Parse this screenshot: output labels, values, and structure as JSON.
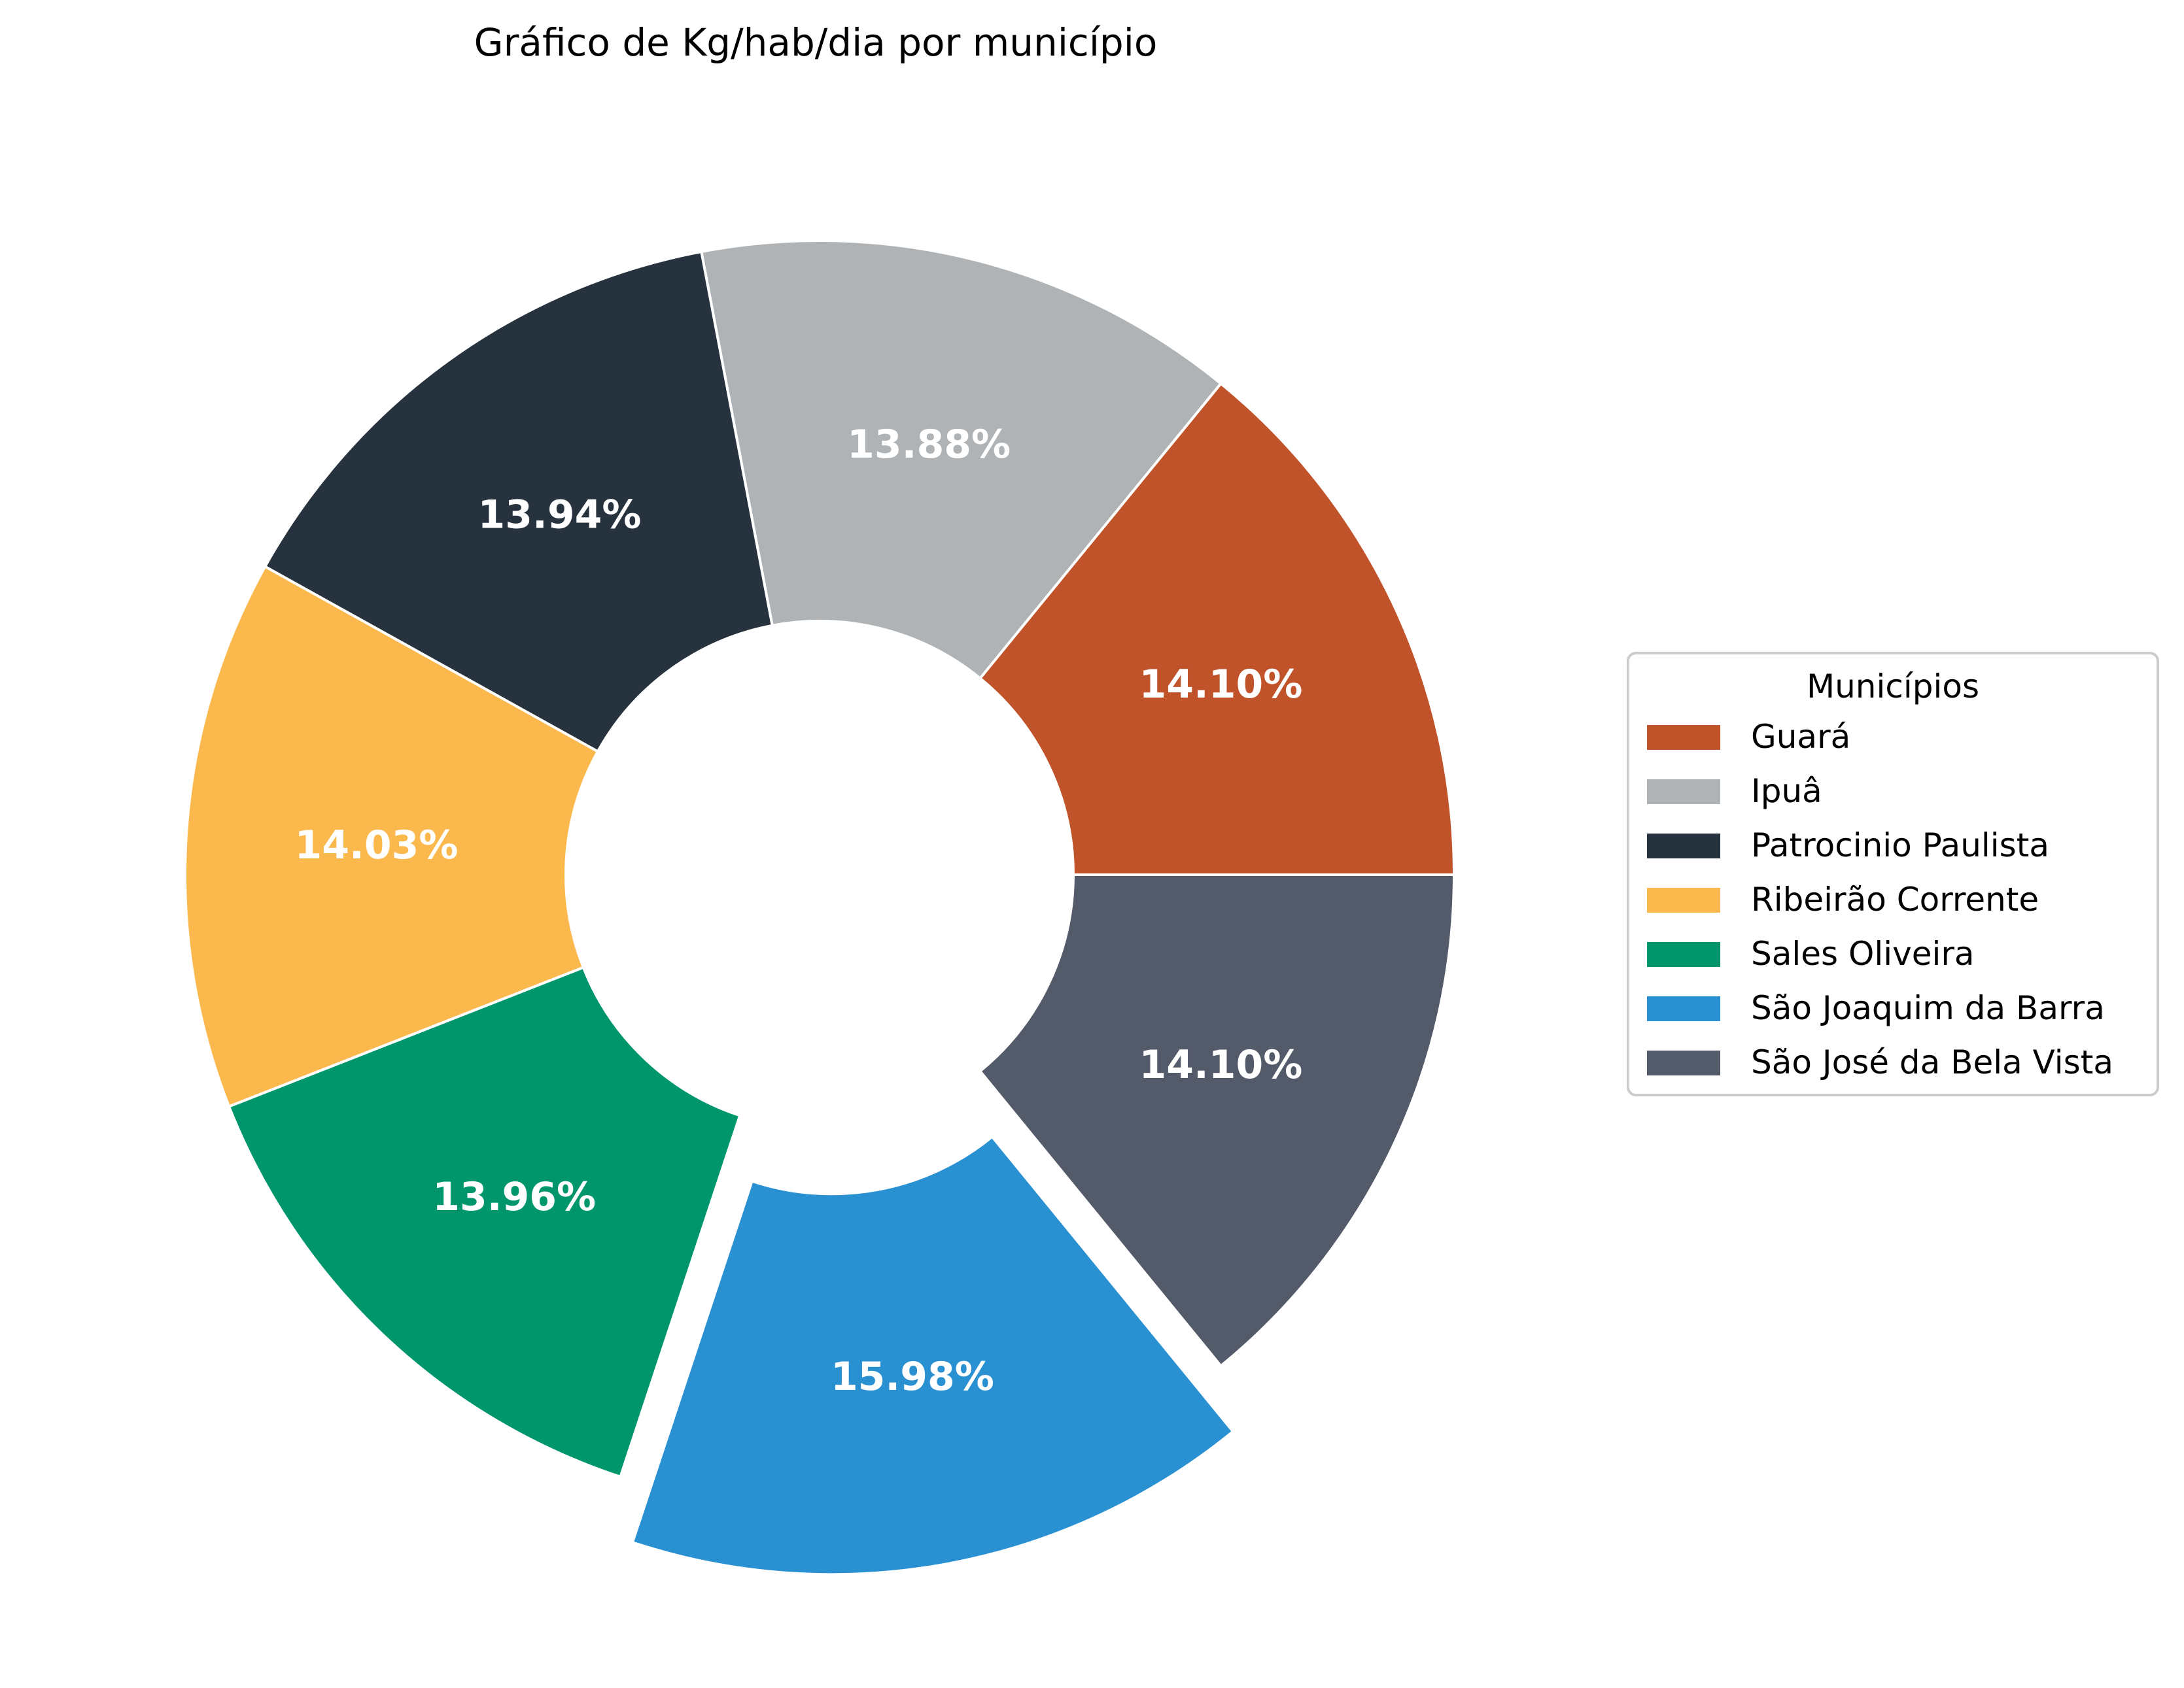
{
  "chart_data": {
    "type": "pie",
    "variant": "donut",
    "title": "Gráfico de Kg/hab/dia por município",
    "legend": {
      "title": "Municípios",
      "placement": "center-right"
    },
    "start_angle_deg": 0,
    "direction": "counterclockwise",
    "exploded_slice": "São Joaquim da Barra",
    "slices": [
      {
        "label": "Guará",
        "value": 14.1,
        "display": "14.10%",
        "color": "#C0532A"
      },
      {
        "label": "Ipuâ",
        "value": 13.88,
        "display": "13.88%",
        "color": "#B0B3B5"
      },
      {
        "label": "Patrocinio Paulista",
        "value": 13.94,
        "display": "13.94%",
        "color": "#26323D"
      },
      {
        "label": "Ribeirão Corrente",
        "value": 14.03,
        "display": "14.03%",
        "color": "#FBB84C"
      },
      {
        "label": "Sales Oliveira",
        "value": 13.96,
        "display": "13.96%",
        "color": "#00966C"
      },
      {
        "label": "São Joaquim da Barra",
        "value": 15.98,
        "display": "15.98%",
        "color": "#2990D2"
      },
      {
        "label": "São José da Bela Vista",
        "value": 14.1,
        "display": "14.10%",
        "color": "#535A69"
      }
    ]
  }
}
